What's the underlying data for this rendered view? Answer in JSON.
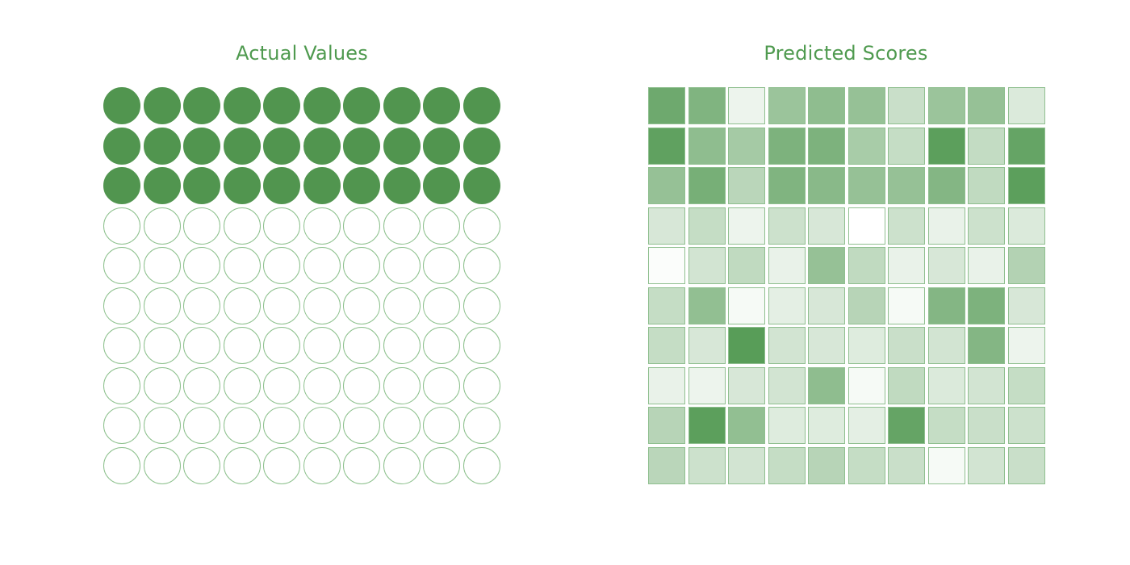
{
  "left_panel": {
    "title": "Actual Values",
    "rows": 10,
    "cols": 10,
    "filled": [
      [
        1,
        1,
        1,
        1,
        1,
        1,
        1,
        1,
        1,
        1
      ],
      [
        1,
        1,
        1,
        1,
        1,
        1,
        1,
        1,
        1,
        1
      ],
      [
        1,
        1,
        1,
        1,
        1,
        1,
        1,
        1,
        1,
        1
      ],
      [
        0,
        0,
        0,
        0,
        0,
        0,
        0,
        0,
        0,
        0
      ],
      [
        0,
        0,
        0,
        0,
        0,
        0,
        0,
        0,
        0,
        0
      ],
      [
        0,
        0,
        0,
        0,
        0,
        0,
        0,
        0,
        0,
        0
      ],
      [
        0,
        0,
        0,
        0,
        0,
        0,
        0,
        0,
        0,
        0
      ],
      [
        0,
        0,
        0,
        0,
        0,
        0,
        0,
        0,
        0,
        0
      ],
      [
        0,
        0,
        0,
        0,
        0,
        0,
        0,
        0,
        0,
        0
      ],
      [
        0,
        0,
        0,
        0,
        0,
        0,
        0,
        0,
        0,
        0
      ]
    ]
  },
  "right_panel": {
    "title": "Predicted Scores",
    "rows": 10,
    "cols": 10,
    "scores": [
      [
        0.8,
        0.7,
        0.1,
        0.55,
        0.62,
        0.58,
        0.3,
        0.55,
        0.58,
        0.2
      ],
      [
        0.88,
        0.62,
        0.5,
        0.72,
        0.72,
        0.48,
        0.32,
        0.9,
        0.33,
        0.85
      ],
      [
        0.58,
        0.75,
        0.38,
        0.7,
        0.65,
        0.58,
        0.58,
        0.68,
        0.35,
        0.9
      ],
      [
        0.22,
        0.32,
        0.1,
        0.28,
        0.22,
        0.0,
        0.28,
        0.12,
        0.28,
        0.2
      ],
      [
        0.02,
        0.25,
        0.35,
        0.12,
        0.58,
        0.35,
        0.12,
        0.22,
        0.12,
        0.42
      ],
      [
        0.32,
        0.6,
        0.05,
        0.15,
        0.22,
        0.4,
        0.05,
        0.68,
        0.72,
        0.22
      ],
      [
        0.32,
        0.22,
        0.92,
        0.25,
        0.22,
        0.18,
        0.3,
        0.25,
        0.68,
        0.1
      ],
      [
        0.12,
        0.1,
        0.22,
        0.25,
        0.62,
        0.05,
        0.35,
        0.2,
        0.25,
        0.32
      ],
      [
        0.4,
        0.9,
        0.6,
        0.18,
        0.18,
        0.15,
        0.85,
        0.32,
        0.3,
        0.28
      ],
      [
        0.38,
        0.28,
        0.25,
        0.32,
        0.4,
        0.32,
        0.3,
        0.05,
        0.25,
        0.3
      ]
    ]
  },
  "colors": {
    "accent": "#4f9a4f",
    "filled": "#51954f",
    "outline": "#8cc08c",
    "scale_low": "#ffffff",
    "scale_high": "#4a944a"
  }
}
